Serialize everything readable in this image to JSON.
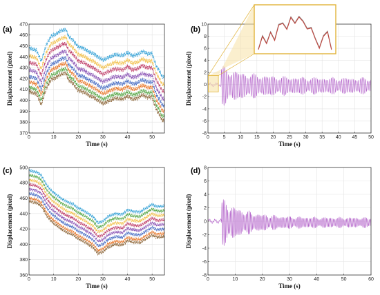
{
  "chart_data": [
    {
      "id": "a",
      "type": "line",
      "panel_label": "(a)",
      "xlabel": "Time (s)",
      "ylabel": "Displacement (pixel)",
      "xlim": [
        0,
        55
      ],
      "ylim": [
        370,
        470
      ],
      "xticks": [
        0,
        10,
        20,
        30,
        40,
        50
      ],
      "yticks": [
        370,
        380,
        390,
        400,
        410,
        420,
        430,
        440,
        450,
        460,
        470
      ],
      "grid": true,
      "base_profile": {
        "x": [
          0,
          3,
          4,
          5,
          7,
          9,
          11,
          13,
          15,
          16,
          18,
          20,
          22,
          24,
          26,
          28,
          30,
          33,
          35,
          38,
          40,
          42,
          44,
          46,
          48,
          50,
          51,
          52,
          53,
          54,
          55
        ],
        "y": [
          448,
          446,
          441,
          436,
          451,
          459,
          461,
          464,
          465,
          459,
          455,
          449,
          448,
          445,
          443,
          440,
          437,
          440,
          442,
          441,
          444,
          441,
          442,
          445,
          443,
          443,
          436,
          430,
          427,
          422,
          421
        ]
      },
      "series": [
        {
          "offset": 0,
          "color": "#3ea6d8"
        },
        {
          "offset": -7,
          "color": "#f2c14e"
        },
        {
          "offset": -13,
          "color": "#c0426b"
        },
        {
          "offset": -20,
          "color": "#8b55b5"
        },
        {
          "offset": -26,
          "color": "#4a6fc4"
        },
        {
          "offset": -31,
          "color": "#e87a2e"
        },
        {
          "offset": -36,
          "color": "#5aa84a"
        },
        {
          "offset": -40,
          "color": "#8f6a3e"
        }
      ]
    },
    {
      "id": "b",
      "type": "line",
      "panel_label": "(b)",
      "xlabel": "Time (s)",
      "ylabel": "Displacement (pixel)",
      "xlim": [
        0,
        50
      ],
      "ylim": [
        -8,
        10
      ],
      "xticks": [
        0,
        5,
        10,
        15,
        20,
        25,
        30,
        35,
        40,
        45,
        50
      ],
      "yticks": [
        -8,
        -6,
        -4,
        -2,
        0,
        2,
        4,
        6,
        8,
        10
      ],
      "grid": true,
      "onset": 4,
      "peak": 3.5,
      "end_amplitude": 1.4,
      "color": "#b05cc8",
      "inset": true
    },
    {
      "id": "c",
      "type": "line",
      "panel_label": "(c)",
      "xlabel": "Time (s)",
      "ylabel": "Displacement (pixel)",
      "xlim": [
        0,
        55
      ],
      "ylim": [
        360,
        500
      ],
      "xticks": [
        0,
        10,
        20,
        30,
        40,
        50
      ],
      "yticks": [
        360,
        380,
        400,
        420,
        440,
        460,
        480,
        500
      ],
      "grid": true,
      "base_profile": {
        "x": [
          0,
          3,
          5,
          7,
          9,
          11,
          13,
          15,
          18,
          20,
          22,
          24,
          26,
          28,
          30,
          32,
          35,
          38,
          40,
          42,
          45,
          48,
          50,
          52,
          55
        ],
        "y": [
          496,
          494,
          490,
          478,
          470,
          465,
          460,
          456,
          452,
          447,
          444,
          440,
          436,
          428,
          430,
          436,
          440,
          439,
          445,
          443,
          442,
          448,
          452,
          449,
          450
        ]
      },
      "series": [
        {
          "offset": 0,
          "color": "#3ea6d8"
        },
        {
          "offset": -6,
          "color": "#5aa84a"
        },
        {
          "offset": -12,
          "color": "#f2c14e"
        },
        {
          "offset": -18,
          "color": "#c0426b"
        },
        {
          "offset": -24,
          "color": "#8b55b5"
        },
        {
          "offset": -30,
          "color": "#4a6fc4"
        },
        {
          "offset": -36,
          "color": "#e87a2e"
        },
        {
          "offset": -40,
          "color": "#8f6a3e"
        }
      ]
    },
    {
      "id": "d",
      "type": "line",
      "panel_label": "(d)",
      "xlabel": "Time (s)",
      "ylabel": "Displacement (pixel)",
      "xlim": [
        0,
        60
      ],
      "ylim": [
        -8,
        8
      ],
      "xticks": [
        0,
        10,
        20,
        30,
        40,
        50,
        60
      ],
      "yticks": [
        -8,
        -6,
        -4,
        -2,
        0,
        2,
        4,
        6,
        8
      ],
      "grid": true,
      "onset": 5,
      "peak": 3.8,
      "end_amplitude": 0.8,
      "color": "#b05cc8",
      "inset": false
    }
  ]
}
